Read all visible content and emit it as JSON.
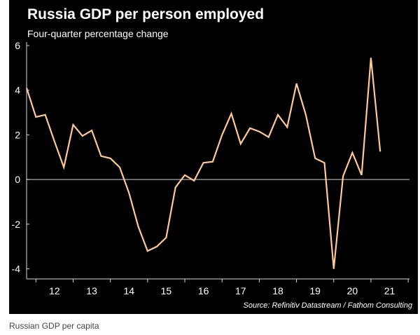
{
  "chart_data": {
    "type": "line",
    "title": "Russia GDP per person employed",
    "subtitle": "Four-quarter percentage change",
    "source": "Source: Refinitiv Datastream / Fathom Consulting",
    "xlabel": "",
    "ylabel": "",
    "x_ticks": [
      "12",
      "13",
      "14",
      "15",
      "16",
      "17",
      "18",
      "19",
      "20",
      "21"
    ],
    "y_ticks": [
      "6",
      "4",
      "2",
      "0",
      "-2",
      "-4"
    ],
    "ylim": [
      -4.2,
      6
    ],
    "grid": false,
    "zero_line": true,
    "line_color": "#ffc896",
    "series": [
      {
        "x": [
          2011.75,
          2012.0,
          2012.25,
          2012.5,
          2012.75,
          2013.0,
          2013.25,
          2013.5,
          2013.75,
          2014.0,
          2014.25,
          2014.5,
          2014.75,
          2015.0,
          2015.25,
          2015.5,
          2015.75,
          2016.0,
          2016.25,
          2016.5,
          2016.75,
          2017.0,
          2017.25,
          2017.5,
          2017.75,
          2018.0,
          2018.25,
          2018.5,
          2018.75,
          2019.0,
          2019.25,
          2019.5,
          2019.75,
          2020.0,
          2020.25,
          2020.5,
          2020.75,
          2021.0,
          2021.25
        ],
        "values": [
          4.1,
          2.8,
          2.9,
          1.7,
          0.55,
          2.45,
          1.95,
          2.2,
          1.05,
          0.95,
          0.55,
          -0.6,
          -2.1,
          -3.2,
          -3.0,
          -2.6,
          -0.35,
          0.2,
          -0.05,
          0.75,
          0.8,
          2.0,
          2.95,
          1.6,
          2.3,
          2.15,
          1.9,
          2.9,
          2.35,
          4.3,
          2.9,
          0.95,
          0.75,
          -4.0,
          0.15,
          1.2,
          0.2,
          5.45,
          1.25
        ]
      }
    ]
  },
  "caption": "Russian GDP per capita"
}
